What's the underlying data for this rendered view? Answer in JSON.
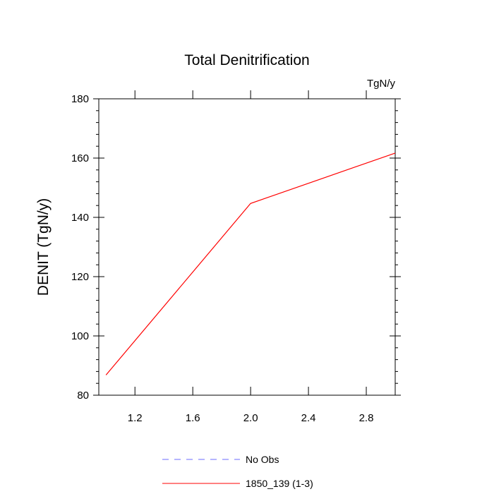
{
  "chart_data": {
    "type": "line",
    "title": "Total Denitrification",
    "units_label": "TgN/y",
    "xlabel": "",
    "ylabel": "DENIT  (TgN/y)",
    "xlim": [
      0.95,
      3.0
    ],
    "ylim": [
      80,
      180
    ],
    "x_major_ticks": [
      1.2,
      1.6,
      2.0,
      2.4,
      2.8
    ],
    "x_tick_labels": [
      "1.2",
      "1.6",
      "2.0",
      "2.4",
      "2.8"
    ],
    "x_minor_ticks": [],
    "y_major_ticks": [
      80,
      100,
      120,
      140,
      160,
      180
    ],
    "y_tick_labels": [
      "80",
      "100",
      "120",
      "140",
      "160",
      "180"
    ],
    "y_minor_step": 4,
    "grid": false,
    "legend_position": "bottom",
    "series": [
      {
        "name": "1850_139 (1-3)",
        "color": "#ff0000",
        "style": "solid",
        "x": [
          1.0,
          2.0,
          3.0
        ],
        "y": [
          86.8,
          144.7,
          161.7
        ]
      }
    ],
    "legend": [
      {
        "label": "No Obs",
        "color": "#6b6bff",
        "style": "dashed"
      },
      {
        "label": "1850_139 (1-3)",
        "color": "#ff0000",
        "style": "solid"
      }
    ]
  }
}
